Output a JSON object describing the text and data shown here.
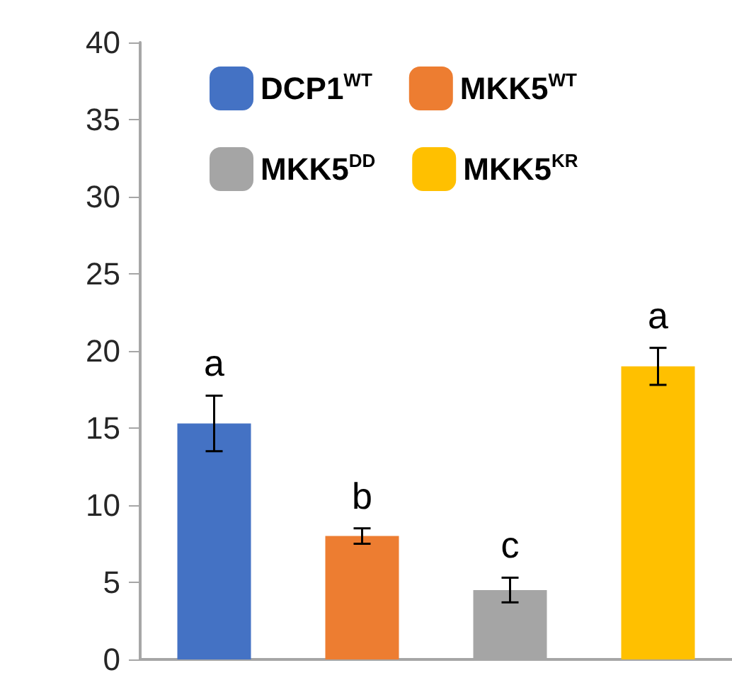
{
  "chart_data": {
    "type": "bar",
    "categories": [
      null,
      null,
      null,
      null
    ],
    "series": [
      {
        "name": "DCP1$^{WT}$",
        "color": "#4472c4",
        "values": [
          15.3,
          null,
          null,
          null
        ],
        "errors": [
          1.8,
          null,
          null,
          null
        ]
      },
      {
        "name": "MKK5$^{WT}$",
        "color": "#ed7d31",
        "values": [
          null,
          8.0,
          null,
          null
        ],
        "errors": [
          null,
          0.5,
          null,
          null
        ]
      },
      {
        "name": "MKK5$^{DD}$",
        "color": "#a5a5a5",
        "values": [
          null,
          null,
          4.5,
          null
        ],
        "errors": [
          null,
          null,
          0.8,
          null
        ]
      },
      {
        "name": "MKK5$^{KR}$",
        "color": "#ffc000",
        "values": [
          null,
          null,
          null,
          19.0
        ],
        "errors": [
          null,
          null,
          null,
          1.2
        ]
      }
    ],
    "annotations": [
      "a",
      "b",
      "c",
      "a"
    ],
    "ylim": [
      0,
      40
    ],
    "yticks": [
      0,
      5,
      10,
      15,
      20,
      25,
      30,
      35,
      40
    ],
    "grid": false,
    "legend": "top"
  }
}
